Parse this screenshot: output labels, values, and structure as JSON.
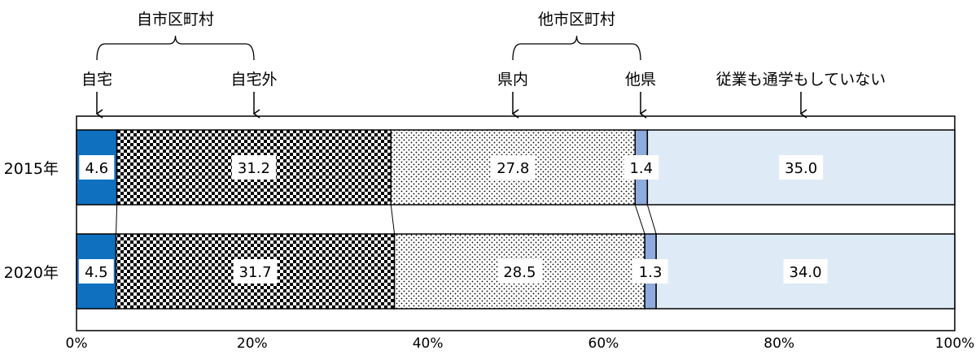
{
  "chart_data": {
    "type": "bar",
    "orientation": "horizontal",
    "stacked": true,
    "percent_stacked": true,
    "categories": [
      "2015年",
      "2020年"
    ],
    "series": [
      {
        "name": "自宅",
        "values": [
          4.6,
          4.5
        ],
        "color": "#0f70c0",
        "pattern": "solid"
      },
      {
        "name": "自宅外",
        "values": [
          31.2,
          31.7
        ],
        "color": "#000000",
        "pattern": "checker"
      },
      {
        "name": "県内",
        "values": [
          27.8,
          28.5
        ],
        "color": "#ffffff",
        "pattern": "dots"
      },
      {
        "name": "他県",
        "values": [
          1.4,
          1.3
        ],
        "color": "#8faadc",
        "pattern": "solid"
      },
      {
        "name": "従業も通学もしていない",
        "values": [
          35.0,
          34.0
        ],
        "color": "#deebf7",
        "pattern": "solid"
      }
    ],
    "groups": [
      {
        "name": "自市区町村",
        "series": [
          "自宅",
          "自宅外"
        ]
      },
      {
        "name": "他市区町村",
        "series": [
          "県内",
          "他県"
        ]
      }
    ],
    "xlim": [
      0,
      100
    ],
    "xticks": [
      "0%",
      "20%",
      "40%",
      "60%",
      "80%",
      "100%"
    ],
    "legend": "callouts-top",
    "grid": false,
    "title": "",
    "xlabel": "",
    "ylabel": ""
  }
}
